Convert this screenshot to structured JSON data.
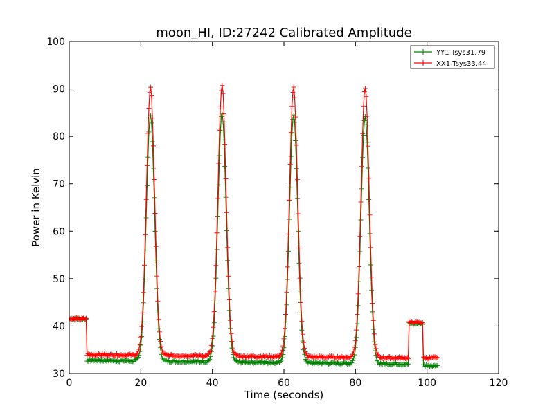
{
  "chart_data": {
    "type": "line",
    "title": "moon_HI, ID:27242 Calibrated Amplitude",
    "xlabel": "Time (seconds)",
    "ylabel": "Power in Kelvin",
    "xlim": [
      0,
      120
    ],
    "ylim": [
      30,
      100
    ],
    "xticks": [
      "0",
      "20",
      "40",
      "60",
      "80",
      "100",
      "120"
    ],
    "yticks": [
      "30",
      "40",
      "50",
      "60",
      "70",
      "80",
      "90",
      "100"
    ],
    "grid": false,
    "legend_position": "top-right",
    "marker": "+",
    "series": [
      {
        "name": "YY1 Tsys31.79",
        "color": "#008000",
        "segments": [
          {
            "start": 0,
            "end": 5,
            "baseline": 41.5
          },
          {
            "start": 5,
            "end": 95,
            "baseline": 32.8,
            "peaks": [
              {
                "center": 22.7,
                "amplitude": 84.5
              },
              {
                "center": 42.7,
                "amplitude": 84.8
              },
              {
                "center": 62.7,
                "amplitude": 84.5
              },
              {
                "center": 82.7,
                "amplitude": 84.3
              }
            ],
            "baseline_end": 32.0
          },
          {
            "start": 95,
            "end": 99,
            "baseline": 40.5
          },
          {
            "start": 99,
            "end": 103,
            "baseline": 31.7
          }
        ]
      },
      {
        "name": "XX1 Tsys33.44",
        "color": "#ff0000",
        "segments": [
          {
            "start": 0,
            "end": 5,
            "baseline": 41.5
          },
          {
            "start": 5,
            "end": 95,
            "baseline": 34.0,
            "peaks": [
              {
                "center": 22.7,
                "amplitude": 90.2
              },
              {
                "center": 42.7,
                "amplitude": 90.7
              },
              {
                "center": 62.7,
                "amplitude": 90.3
              },
              {
                "center": 82.7,
                "amplitude": 90.3
              }
            ],
            "baseline_end": 33.3
          },
          {
            "start": 95,
            "end": 99,
            "baseline": 40.8
          },
          {
            "start": 99,
            "end": 103,
            "baseline": 33.3
          }
        ]
      }
    ]
  }
}
